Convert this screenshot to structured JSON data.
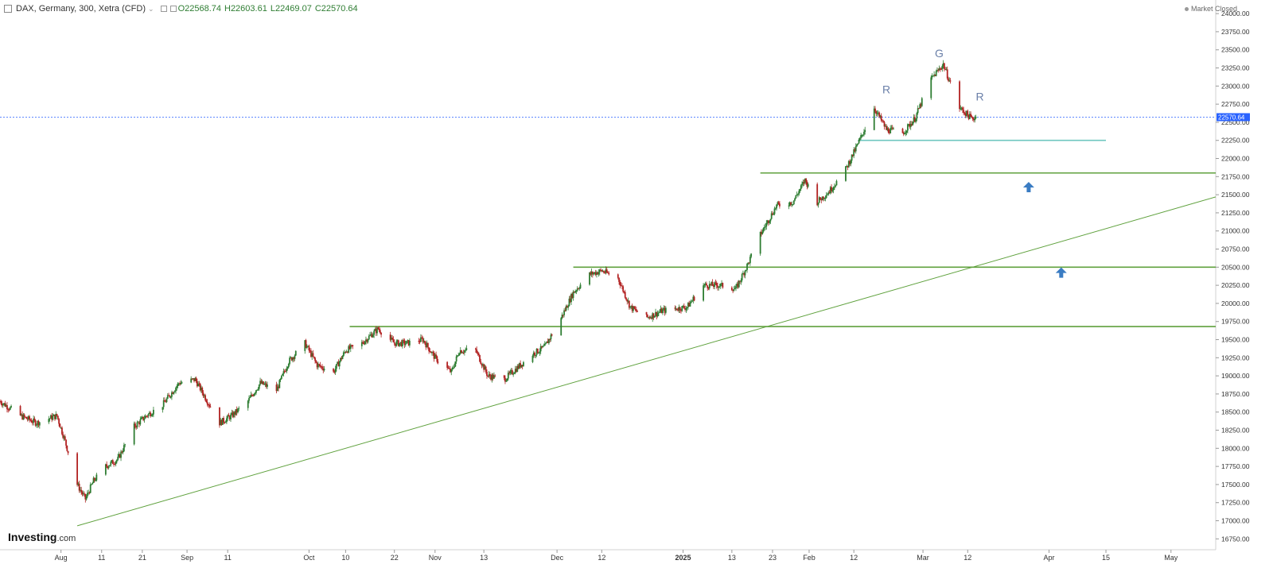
{
  "header": {
    "title": "DAX, Germany, 300, Xetra (CFD)",
    "open": "O22568.74",
    "high": "H22603.61",
    "low": "L22469.07",
    "close": "C22570.64"
  },
  "market_status": "Market Closed",
  "logo": {
    "name": "Investing",
    "suffix": ".com"
  },
  "chart_data": {
    "type": "candlestick",
    "title": "DAX, Germany, 300, Xetra (CFD)",
    "y_range": [
      16600,
      24100
    ],
    "y_ticks": [
      16750,
      17000,
      17250,
      17500,
      17750,
      18000,
      18250,
      18500,
      18750,
      19000,
      19250,
      19500,
      19750,
      20000,
      20250,
      20500,
      20750,
      21000,
      21250,
      21500,
      21750,
      22000,
      22250,
      22500,
      22750,
      23000,
      23250,
      23500,
      23750,
      24000
    ],
    "x_range": [
      "2024-07-17",
      "2025-05-12"
    ],
    "x_ticks": [
      {
        "date": "2024-08-01",
        "label": "Aug"
      },
      {
        "date": "2024-08-11",
        "label": "11"
      },
      {
        "date": "2024-08-21",
        "label": "21"
      },
      {
        "date": "2024-09-01",
        "label": "Sep"
      },
      {
        "date": "2024-09-11",
        "label": "11"
      },
      {
        "date": "2024-10-01",
        "label": "Oct"
      },
      {
        "date": "2024-10-10",
        "label": "10"
      },
      {
        "date": "2024-10-22",
        "label": "22"
      },
      {
        "date": "2024-11-01",
        "label": "Nov"
      },
      {
        "date": "2024-11-13",
        "label": "13"
      },
      {
        "date": "2024-12-01",
        "label": "Dec"
      },
      {
        "date": "2024-12-12",
        "label": "12"
      },
      {
        "date": "2025-01-01",
        "label": "2025"
      },
      {
        "date": "2025-01-13",
        "label": "13"
      },
      {
        "date": "2025-01-23",
        "label": "23"
      },
      {
        "date": "2025-02-01",
        "label": "Feb"
      },
      {
        "date": "2025-02-12",
        "label": "12"
      },
      {
        "date": "2025-03-01",
        "label": "Mar"
      },
      {
        "date": "2025-03-12",
        "label": "12"
      },
      {
        "date": "2025-04-01",
        "label": "Apr"
      },
      {
        "date": "2025-04-15",
        "label": "15"
      },
      {
        "date": "2025-05-01",
        "label": "May"
      }
    ],
    "price_path": [
      [
        "2024-07-17",
        18650
      ],
      [
        "2024-07-22",
        18450
      ],
      [
        "2024-07-26",
        18350
      ],
      [
        "2024-07-31",
        18450
      ],
      [
        "2024-08-02",
        18100
      ],
      [
        "2024-08-05",
        17500
      ],
      [
        "2024-08-07",
        17300
      ],
      [
        "2024-08-09",
        17550
      ],
      [
        "2024-08-12",
        17750
      ],
      [
        "2024-08-15",
        17850
      ],
      [
        "2024-08-19",
        18300
      ],
      [
        "2024-08-22",
        18450
      ],
      [
        "2024-08-26",
        18600
      ],
      [
        "2024-08-30",
        18900
      ],
      [
        "2024-09-03",
        18950
      ],
      [
        "2024-09-06",
        18650
      ],
      [
        "2024-09-09",
        18350
      ],
      [
        "2024-09-12",
        18450
      ],
      [
        "2024-09-16",
        18650
      ],
      [
        "2024-09-19",
        18900
      ],
      [
        "2024-09-23",
        18800
      ],
      [
        "2024-09-26",
        19200
      ],
      [
        "2024-09-30",
        19450
      ],
      [
        "2024-10-03",
        19150
      ],
      [
        "2024-10-07",
        19050
      ],
      [
        "2024-10-10",
        19350
      ],
      [
        "2024-10-14",
        19450
      ],
      [
        "2024-10-18",
        19650
      ],
      [
        "2024-10-22",
        19450
      ],
      [
        "2024-10-25",
        19450
      ],
      [
        "2024-10-29",
        19500
      ],
      [
        "2024-11-01",
        19250
      ],
      [
        "2024-11-05",
        19050
      ],
      [
        "2024-11-07",
        19350
      ],
      [
        "2024-11-11",
        19350
      ],
      [
        "2024-11-14",
        19000
      ],
      [
        "2024-11-18",
        18950
      ],
      [
        "2024-11-21",
        19100
      ],
      [
        "2024-11-25",
        19300
      ],
      [
        "2024-11-28",
        19400
      ],
      [
        "2024-12-02",
        19800
      ],
      [
        "2024-12-05",
        20150
      ],
      [
        "2024-12-09",
        20400
      ],
      [
        "2024-12-12",
        20450
      ],
      [
        "2024-12-16",
        20350
      ],
      [
        "2024-12-19",
        19950
      ],
      [
        "2024-12-23",
        19800
      ],
      [
        "2024-12-27",
        19900
      ],
      [
        "2025-01-02",
        19950
      ],
      [
        "2025-01-06",
        20250
      ],
      [
        "2025-01-10",
        20250
      ],
      [
        "2025-01-14",
        20200
      ],
      [
        "2025-01-17",
        20550
      ],
      [
        "2025-01-20",
        20950
      ],
      [
        "2025-01-24",
        21350
      ],
      [
        "2025-01-28",
        21400
      ],
      [
        "2025-01-31",
        21700
      ],
      [
        "2025-02-03",
        21400
      ],
      [
        "2025-02-06",
        21550
      ],
      [
        "2025-02-10",
        21850
      ],
      [
        "2025-02-13",
        22200
      ],
      [
        "2025-02-17",
        22700
      ],
      [
        "2025-02-20",
        22400
      ],
      [
        "2025-02-24",
        22350
      ],
      [
        "2025-02-27",
        22550
      ],
      [
        "2025-03-03",
        23100
      ],
      [
        "2025-03-06",
        23300
      ],
      [
        "2025-03-10",
        22700
      ],
      [
        "2025-03-13",
        22550
      ],
      [
        "2025-03-14",
        22570.64
      ]
    ],
    "last_price": 22570.64,
    "last_price_label": "22570.64",
    "horizontal_levels": [
      {
        "price": 22250,
        "from": "2025-02-13",
        "to": "2025-04-15",
        "color": "#6fc7c0"
      },
      {
        "price": 21800,
        "from": "2025-01-20",
        "to": "2025-05-12",
        "color": "#5fa13d"
      },
      {
        "price": 20500,
        "from": "2024-12-05",
        "to": "2025-05-12",
        "color": "#5fa13d"
      },
      {
        "price": 19680,
        "from": "2024-10-11",
        "to": "2025-05-12",
        "color": "#5fa13d"
      }
    ],
    "trendline": {
      "from": [
        "2024-08-05",
        16930
      ],
      "to": [
        "2025-05-12",
        21470
      ],
      "color": "#5fa13d"
    },
    "annotations": [
      {
        "text": "R",
        "date": "2025-02-20",
        "price": 22900
      },
      {
        "text": "G",
        "date": "2025-03-05",
        "price": 23400
      },
      {
        "text": "R",
        "date": "2025-03-15",
        "price": 22800
      }
    ],
    "arrows": [
      {
        "date": "2025-03-27",
        "price": 21600,
        "direction": "up"
      },
      {
        "date": "2025-04-04",
        "price": 20420,
        "direction": "up"
      }
    ],
    "colors": {
      "up": "#2e7d32",
      "down": "#b22222",
      "level": "#5fa13d",
      "support_cyan": "#6fc7c0",
      "last_price": "#2962ff",
      "annotation": "#6a7fa8",
      "arrow": "#3a7cc3"
    }
  }
}
